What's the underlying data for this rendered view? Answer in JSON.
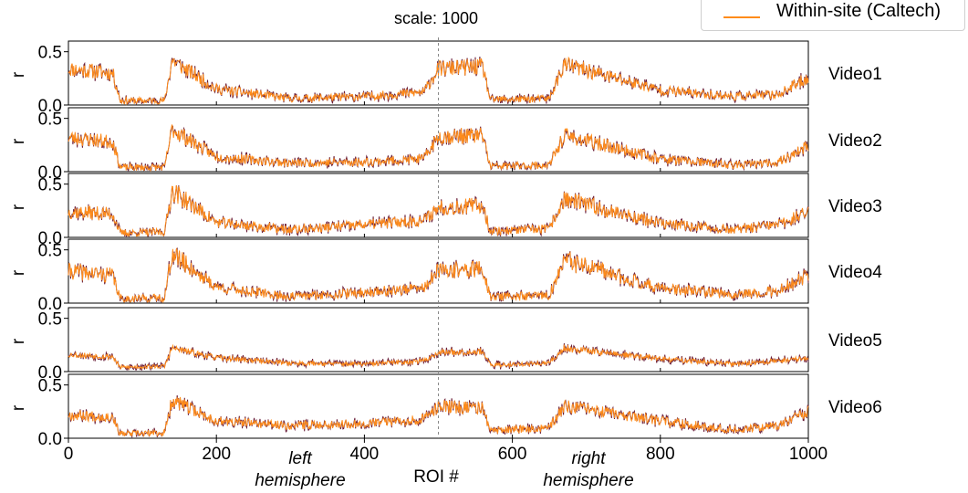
{
  "chart_data": {
    "type": "line",
    "title": "scale: 1000",
    "xlabel": "ROI #",
    "ylabel": "r",
    "xlim": [
      0,
      1000
    ],
    "ylim": [
      0,
      0.6
    ],
    "xticks": [
      "0",
      "200",
      "400",
      "600",
      "800",
      "1000"
    ],
    "xtick_values": [
      0,
      200,
      400,
      600,
      800,
      1000
    ],
    "yticks": [
      "0.0",
      "0.5"
    ],
    "ytick_values": [
      0.0,
      0.5
    ],
    "divider_x": 500,
    "annotations": {
      "left": [
        "left",
        "hemisphere"
      ],
      "right": [
        "right",
        "hemisphere"
      ]
    },
    "legend": {
      "placement": "top-right",
      "entries": [
        {
          "label": "Within-site (Caltech)",
          "color": "#ff8c1a"
        }
      ]
    },
    "colors": {
      "overlay": "#ff8c1a",
      "underlay": "#6b1f3a",
      "divider": "#888888"
    },
    "series_profile_note_x": [
      0,
      60,
      70,
      130,
      140,
      200,
      300,
      400,
      480,
      500,
      560,
      570,
      650,
      670,
      800,
      900,
      960,
      1000
    ],
    "panels": [
      {
        "name": "Video1",
        "profile": [
          0.34,
          0.3,
          0.04,
          0.04,
          0.42,
          0.15,
          0.06,
          0.08,
          0.12,
          0.34,
          0.36,
          0.05,
          0.06,
          0.38,
          0.14,
          0.08,
          0.1,
          0.26
        ],
        "noise": 0.09,
        "seed": 11
      },
      {
        "name": "Video2",
        "profile": [
          0.32,
          0.28,
          0.04,
          0.04,
          0.4,
          0.14,
          0.08,
          0.09,
          0.12,
          0.33,
          0.34,
          0.05,
          0.06,
          0.34,
          0.12,
          0.06,
          0.09,
          0.24
        ],
        "noise": 0.09,
        "seed": 23
      },
      {
        "name": "Video3",
        "profile": [
          0.24,
          0.22,
          0.04,
          0.05,
          0.44,
          0.14,
          0.07,
          0.12,
          0.16,
          0.28,
          0.3,
          0.06,
          0.08,
          0.36,
          0.13,
          0.07,
          0.12,
          0.24
        ],
        "noise": 0.1,
        "seed": 37
      },
      {
        "name": "Video4",
        "profile": [
          0.3,
          0.26,
          0.04,
          0.05,
          0.46,
          0.15,
          0.06,
          0.1,
          0.14,
          0.3,
          0.32,
          0.06,
          0.07,
          0.4,
          0.14,
          0.08,
          0.12,
          0.26
        ],
        "noise": 0.1,
        "seed": 41
      },
      {
        "name": "Video5",
        "profile": [
          0.16,
          0.14,
          0.04,
          0.05,
          0.22,
          0.13,
          0.08,
          0.07,
          0.1,
          0.18,
          0.19,
          0.06,
          0.08,
          0.22,
          0.12,
          0.07,
          0.1,
          0.13
        ],
        "noise": 0.05,
        "seed": 53
      },
      {
        "name": "Video6",
        "profile": [
          0.22,
          0.2,
          0.04,
          0.05,
          0.36,
          0.16,
          0.12,
          0.14,
          0.18,
          0.3,
          0.28,
          0.07,
          0.1,
          0.3,
          0.16,
          0.08,
          0.12,
          0.26
        ],
        "noise": 0.08,
        "seed": 67
      }
    ]
  }
}
